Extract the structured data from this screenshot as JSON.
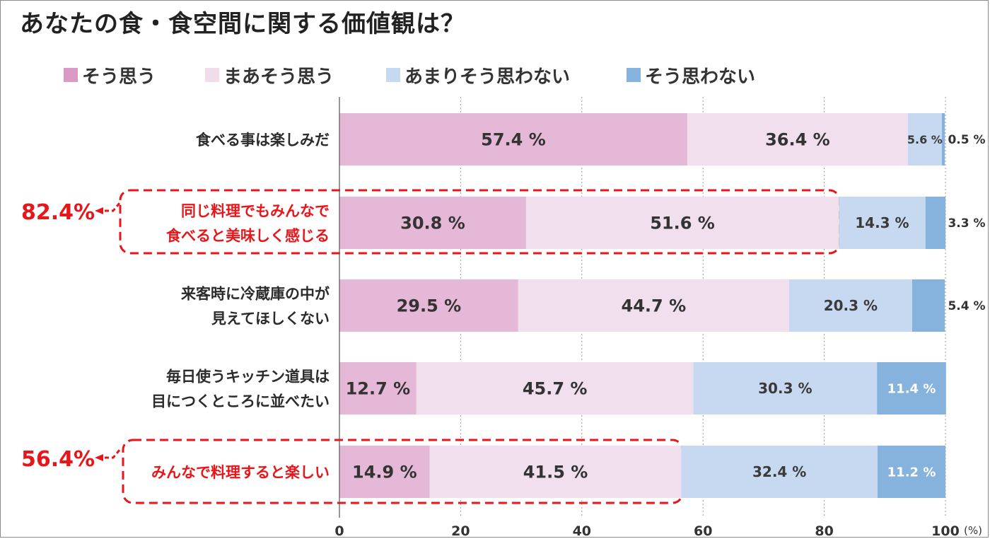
{
  "title": "あなたの食・食空間に関する価値観は？",
  "legend": [
    {
      "label": "そう思う",
      "color": "#d99ac6"
    },
    {
      "label": "まあそう思う",
      "color": "#f1dcec"
    },
    {
      "label": "あまりそう思わない",
      "color": "#c5d9f0"
    },
    {
      "label": "そう思わない",
      "color": "#86b2de"
    }
  ],
  "chart_data": {
    "type": "bar",
    "orientation": "horizontal",
    "stacked": true,
    "title": "あなたの食・食空間に関する価値観は？",
    "xlabel": "",
    "ylabel": "",
    "unit_label": "(%)",
    "xlim": [
      0,
      100
    ],
    "xticks": [
      0,
      20,
      40,
      60,
      80,
      100
    ],
    "grid": "vertical dotted",
    "legend_position": "top",
    "series_colors": [
      "#e5b8d8",
      "#f1dfee",
      "#c6d9f1",
      "#86b2de"
    ],
    "categories": [
      [
        "食べる事は楽しみだ"
      ],
      [
        "同じ料理でもみんなで",
        "食べると美味しく感じる"
      ],
      [
        "来客時に冷蔵庫の中が",
        "見えてほしくない"
      ],
      [
        "毎日使うキッチン道具は",
        "目につくところに並べたい"
      ],
      [
        "みんなで料理すると楽しい"
      ]
    ],
    "series": [
      {
        "name": "そう思う",
        "values": [
          57.4,
          30.8,
          29.5,
          12.7,
          14.9
        ],
        "labels": [
          "57.4 %",
          "30.8 %",
          "29.5 %",
          "12.7 %",
          "14.9 %"
        ]
      },
      {
        "name": "まあそう思う",
        "values": [
          36.4,
          51.6,
          44.7,
          45.7,
          41.5
        ],
        "labels": [
          "36.4 %",
          "51.6 %",
          "44.7 %",
          "45.7 %",
          "41.5 %"
        ]
      },
      {
        "name": "あまりそう思わない",
        "values": [
          5.6,
          14.3,
          20.3,
          30.3,
          32.4
        ],
        "labels": [
          "5.6 %",
          "14.3 %",
          "20.3 %",
          "30.3 %",
          "32.4 %"
        ]
      },
      {
        "name": "そう思わない",
        "values": [
          0.5,
          3.3,
          5.4,
          11.4,
          11.2
        ],
        "labels": [
          "0.5 %",
          "3.3 %",
          "5.4 %",
          "11.4 %",
          "11.2 %"
        ]
      }
    ],
    "highlighted_categories": [
      1,
      4
    ],
    "annotations": [
      {
        "category": 1,
        "text": "82.4%",
        "value": 82.4
      },
      {
        "category": 4,
        "text": "56.4%",
        "value": 56.4
      }
    ]
  }
}
